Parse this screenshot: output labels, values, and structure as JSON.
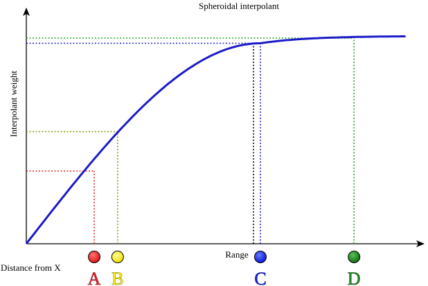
{
  "title": "Spheroidal interpolant",
  "y_axis_label": "Interpolant weight",
  "x_axis_label": "Distance from X",
  "range_label": "Range",
  "points": [
    {
      "letter": "A",
      "color": "#ee1c25",
      "distance": 0.29,
      "weight": 0.35
    },
    {
      "letter": "B",
      "color": "#fff200",
      "distance": 0.39,
      "weight": 0.54
    },
    {
      "letter": "C",
      "color": "#0a1ee6",
      "distance": 1.0,
      "weight": 0.965
    },
    {
      "letter": "D",
      "color": "#1f8a1f",
      "distance": 1.4,
      "weight": 0.99
    }
  ],
  "curve_color": "#1a1ac8",
  "range_marker_color": "#000000",
  "guide_colors": {
    "A": "#e02020",
    "B": "#8a9a00",
    "C": "#2020c0",
    "D": "#20a020"
  }
}
